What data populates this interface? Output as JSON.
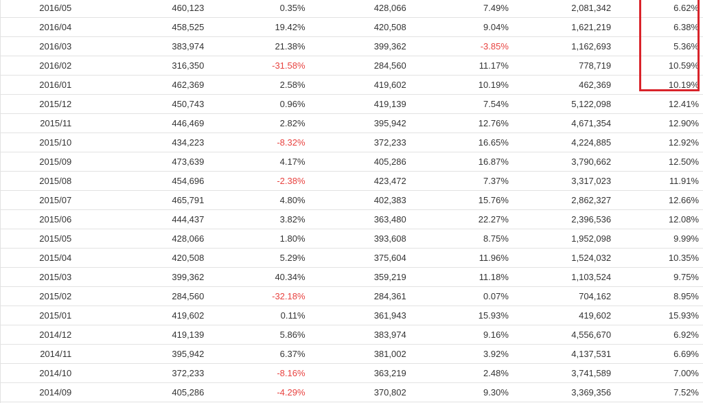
{
  "table": {
    "rows": [
      [
        "2016/05",
        "460,123",
        "0.35%",
        "428,066",
        "7.49%",
        "2,081,342",
        "6.62%"
      ],
      [
        "2016/04",
        "458,525",
        "19.42%",
        "420,508",
        "9.04%",
        "1,621,219",
        "6.38%"
      ],
      [
        "2016/03",
        "383,974",
        "21.38%",
        "399,362",
        "-3.85%",
        "1,162,693",
        "5.36%"
      ],
      [
        "2016/02",
        "316,350",
        "-31.58%",
        "284,560",
        "11.17%",
        "778,719",
        "10.59%"
      ],
      [
        "2016/01",
        "462,369",
        "2.58%",
        "419,602",
        "10.19%",
        "462,369",
        "10.19%"
      ],
      [
        "2015/12",
        "450,743",
        "0.96%",
        "419,139",
        "7.54%",
        "5,122,098",
        "12.41%"
      ],
      [
        "2015/11",
        "446,469",
        "2.82%",
        "395,942",
        "12.76%",
        "4,671,354",
        "12.90%"
      ],
      [
        "2015/10",
        "434,223",
        "-8.32%",
        "372,233",
        "16.65%",
        "4,224,885",
        "12.92%"
      ],
      [
        "2015/09",
        "473,639",
        "4.17%",
        "405,286",
        "16.87%",
        "3,790,662",
        "12.50%"
      ],
      [
        "2015/08",
        "454,696",
        "-2.38%",
        "423,472",
        "7.37%",
        "3,317,023",
        "11.91%"
      ],
      [
        "2015/07",
        "465,791",
        "4.80%",
        "402,383",
        "15.76%",
        "2,862,327",
        "12.66%"
      ],
      [
        "2015/06",
        "444,437",
        "3.82%",
        "363,480",
        "22.27%",
        "2,396,536",
        "12.08%"
      ],
      [
        "2015/05",
        "428,066",
        "1.80%",
        "393,608",
        "8.75%",
        "1,952,098",
        "9.99%"
      ],
      [
        "2015/04",
        "420,508",
        "5.29%",
        "375,604",
        "11.96%",
        "1,524,032",
        "10.35%"
      ],
      [
        "2015/03",
        "399,362",
        "40.34%",
        "359,219",
        "11.18%",
        "1,103,524",
        "9.75%"
      ],
      [
        "2015/02",
        "284,560",
        "-32.18%",
        "284,361",
        "0.07%",
        "704,162",
        "8.95%"
      ],
      [
        "2015/01",
        "419,602",
        "0.11%",
        "361,943",
        "15.93%",
        "419,602",
        "15.93%"
      ],
      [
        "2014/12",
        "419,139",
        "5.86%",
        "383,974",
        "9.16%",
        "4,556,670",
        "6.92%"
      ],
      [
        "2014/11",
        "395,942",
        "6.37%",
        "381,002",
        "3.92%",
        "4,137,531",
        "6.69%"
      ],
      [
        "2014/10",
        "372,233",
        "-8.16%",
        "363,219",
        "2.48%",
        "3,741,589",
        "7.00%"
      ],
      [
        "2014/09",
        "405,286",
        "-4.29%",
        "370,802",
        "9.30%",
        "3,369,356",
        "7.52%"
      ]
    ]
  },
  "colors": {
    "negative": "#e8423f",
    "highlight_border": "#d9232a",
    "text": "#333333",
    "row_border": "#e2e2e2"
  }
}
